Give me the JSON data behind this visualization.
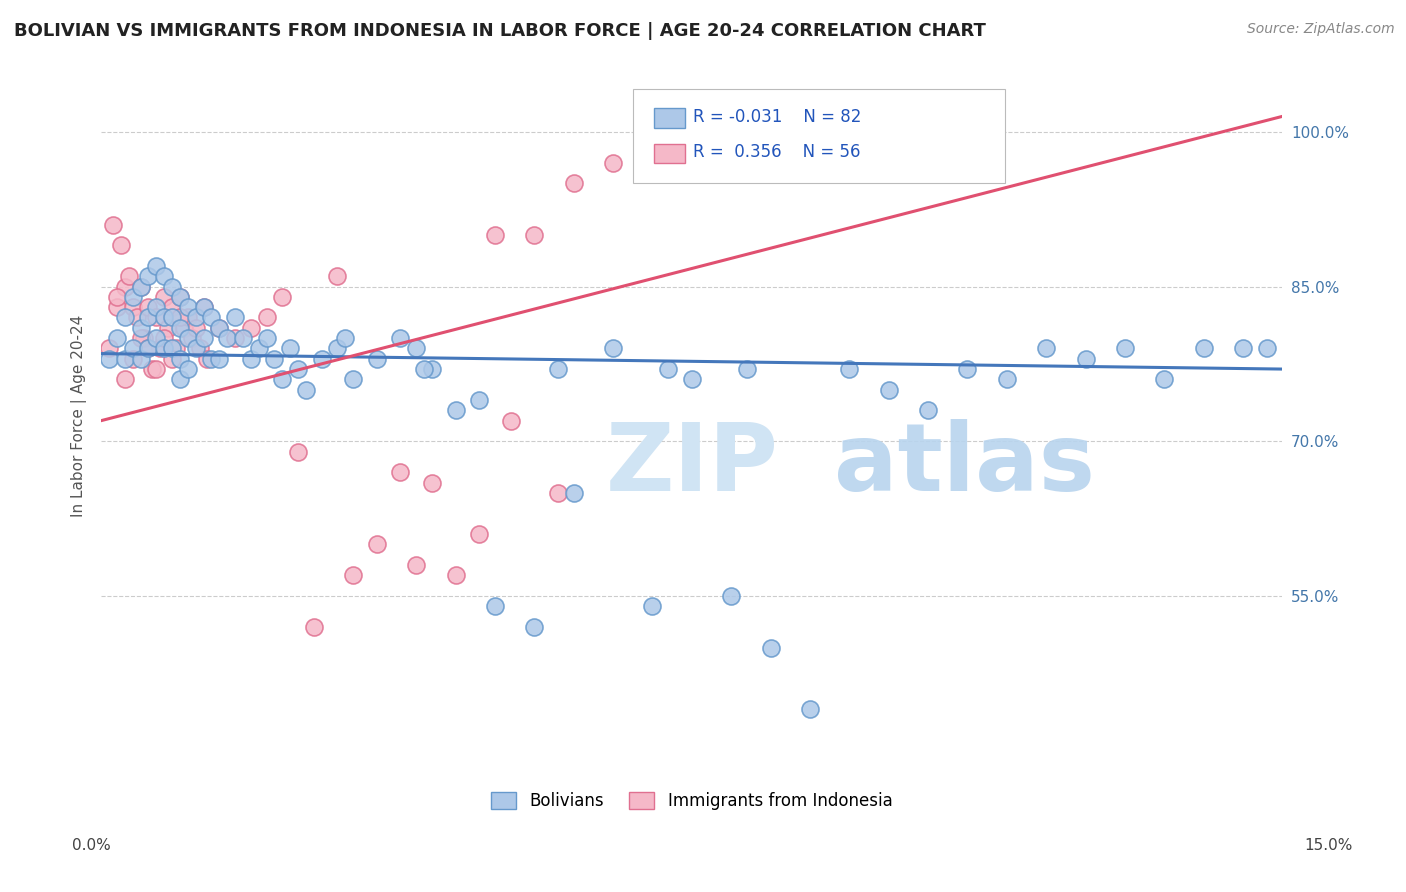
{
  "title": "BOLIVIAN VS IMMIGRANTS FROM INDONESIA IN LABOR FORCE | AGE 20-24 CORRELATION CHART",
  "source": "Source: ZipAtlas.com",
  "ylabel": "In Labor Force | Age 20-24",
  "right_yticks": [
    55.0,
    70.0,
    85.0,
    100.0
  ],
  "xmin": 0.0,
  "xmax": 15.0,
  "ymin": 38.0,
  "ymax": 107.0,
  "legend_r_blue": "-0.031",
  "legend_n_blue": "82",
  "legend_r_pink": "0.356",
  "legend_n_pink": "56",
  "blue_color": "#adc8e8",
  "blue_edge": "#6699cc",
  "pink_color": "#f5b8c8",
  "pink_edge": "#e07090",
  "blue_line_color": "#4477bb",
  "pink_line_color": "#e05070",
  "watermark_color": "#d0e4f4",
  "blue_scatter_x": [
    0.1,
    0.2,
    0.3,
    0.3,
    0.4,
    0.4,
    0.5,
    0.5,
    0.5,
    0.6,
    0.6,
    0.6,
    0.7,
    0.7,
    0.7,
    0.8,
    0.8,
    0.8,
    0.9,
    0.9,
    0.9,
    1.0,
    1.0,
    1.0,
    1.0,
    1.1,
    1.1,
    1.1,
    1.2,
    1.2,
    1.3,
    1.3,
    1.4,
    1.4,
    1.5,
    1.5,
    1.6,
    1.7,
    1.8,
    1.9,
    2.0,
    2.1,
    2.2,
    2.3,
    2.4,
    2.5,
    2.6,
    2.8,
    3.0,
    3.1,
    3.2,
    3.5,
    3.8,
    4.0,
    4.2,
    4.5,
    4.8,
    5.0,
    5.5,
    5.8,
    6.0,
    6.5,
    7.0,
    7.5,
    8.0,
    8.5,
    9.0,
    9.5,
    10.0,
    10.5,
    11.0,
    11.5,
    12.0,
    12.5,
    13.0,
    13.5,
    14.0,
    14.5,
    14.8,
    7.2,
    4.1,
    8.2
  ],
  "blue_scatter_y": [
    78.0,
    80.0,
    82.0,
    78.0,
    84.0,
    79.0,
    85.0,
    81.0,
    78.0,
    86.0,
    82.0,
    79.0,
    87.0,
    83.0,
    80.0,
    86.0,
    82.0,
    79.0,
    85.0,
    82.0,
    79.0,
    84.0,
    81.0,
    78.0,
    76.0,
    83.0,
    80.0,
    77.0,
    82.0,
    79.0,
    83.0,
    80.0,
    82.0,
    78.0,
    81.0,
    78.0,
    80.0,
    82.0,
    80.0,
    78.0,
    79.0,
    80.0,
    78.0,
    76.0,
    79.0,
    77.0,
    75.0,
    78.0,
    79.0,
    80.0,
    76.0,
    78.0,
    80.0,
    79.0,
    77.0,
    73.0,
    74.0,
    54.0,
    52.0,
    77.0,
    65.0,
    79.0,
    54.0,
    76.0,
    55.0,
    50.0,
    44.0,
    77.0,
    75.0,
    73.0,
    77.0,
    76.0,
    79.0,
    78.0,
    79.0,
    76.0,
    79.0,
    79.0,
    79.0,
    77.0,
    77.0,
    77.0
  ],
  "pink_scatter_x": [
    0.1,
    0.15,
    0.2,
    0.25,
    0.3,
    0.35,
    0.4,
    0.45,
    0.5,
    0.55,
    0.6,
    0.65,
    0.7,
    0.75,
    0.8,
    0.85,
    0.9,
    0.95,
    1.0,
    1.05,
    1.1,
    1.15,
    1.2,
    1.25,
    1.3,
    1.35,
    1.5,
    1.7,
    1.9,
    2.1,
    2.3,
    2.5,
    3.0,
    3.2,
    3.5,
    3.8,
    4.0,
    4.2,
    4.5,
    4.8,
    5.0,
    5.2,
    5.5,
    5.8,
    6.0,
    6.5,
    2.7,
    0.2,
    0.3,
    0.4,
    0.5,
    0.6,
    0.7,
    0.8,
    0.9,
    1.0
  ],
  "pink_scatter_y": [
    79.0,
    91.0,
    83.0,
    89.0,
    85.0,
    86.0,
    83.0,
    82.0,
    85.0,
    80.0,
    83.0,
    77.0,
    82.0,
    79.0,
    84.0,
    81.0,
    83.0,
    79.0,
    84.0,
    81.0,
    82.0,
    80.0,
    81.0,
    79.0,
    83.0,
    78.0,
    81.0,
    80.0,
    81.0,
    82.0,
    84.0,
    69.0,
    86.0,
    57.0,
    60.0,
    67.0,
    58.0,
    66.0,
    57.0,
    61.0,
    90.0,
    72.0,
    90.0,
    65.0,
    95.0,
    97.0,
    52.0,
    84.0,
    76.0,
    78.0,
    80.0,
    79.0,
    77.0,
    80.0,
    78.0,
    82.0
  ],
  "blue_trend_x0": 0.0,
  "blue_trend_y0": 78.5,
  "blue_trend_x1": 15.0,
  "blue_trend_y1": 77.0,
  "pink_trend_x0": 0.0,
  "pink_trend_y0": 72.0,
  "pink_trend_x1": 15.0,
  "pink_trend_y1": 101.5
}
